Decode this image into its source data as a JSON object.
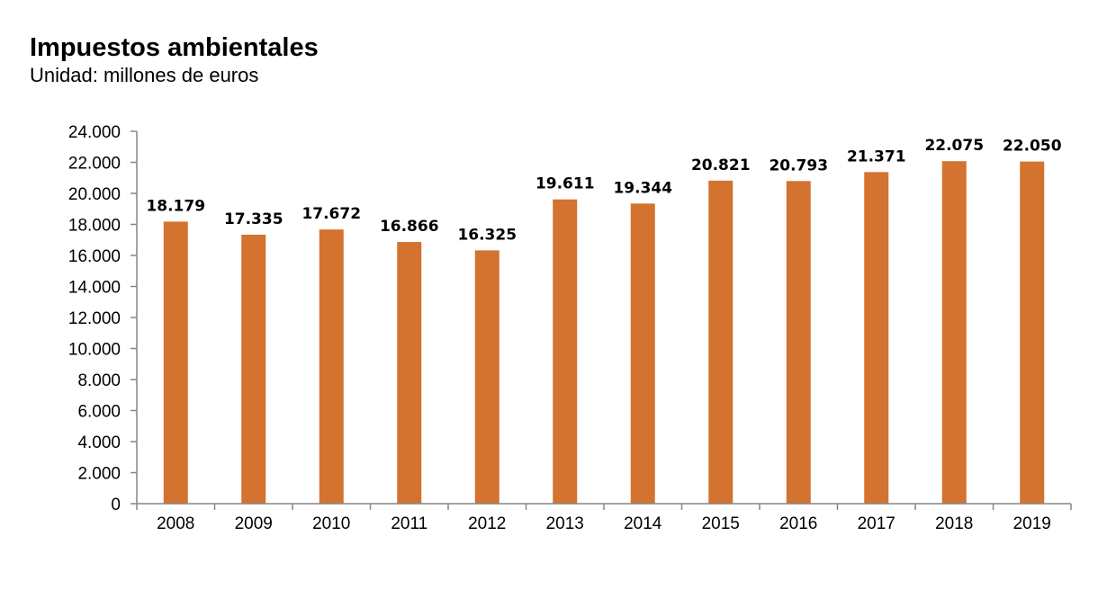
{
  "title": "Impuestos ambientales",
  "subtitle": "Unidad: millones de euros",
  "colors": {
    "bar": "#D4722F",
    "axis": "#868686"
  },
  "chart_data": {
    "type": "bar",
    "title": "Impuestos ambientales",
    "subtitle": "Unidad: millones de euros",
    "xlabel": "",
    "ylabel": "",
    "categories": [
      "2008",
      "2009",
      "2010",
      "2011",
      "2012",
      "2013",
      "2014",
      "2015",
      "2016",
      "2017",
      "2018",
      "2019"
    ],
    "values": [
      18179,
      17335,
      17672,
      16866,
      16325,
      19611,
      19344,
      20821,
      20793,
      21371,
      22075,
      22050
    ],
    "data_labels": [
      "18.179",
      "17.335",
      "17.672",
      "16.866",
      "16.325",
      "19.611",
      "19.344",
      "20.821",
      "20.793",
      "21.371",
      "22.075",
      "22.050"
    ],
    "ylim": [
      0,
      24000
    ],
    "yticks": [
      0,
      2000,
      4000,
      6000,
      8000,
      10000,
      12000,
      14000,
      16000,
      18000,
      20000,
      22000,
      24000
    ],
    "ytick_labels": [
      "0",
      "2.000",
      "4.000",
      "6.000",
      "8.000",
      "10.000",
      "12.000",
      "14.000",
      "16.000",
      "18.000",
      "20.000",
      "22.000",
      "24.000"
    ],
    "grid": false,
    "legend": "none"
  }
}
